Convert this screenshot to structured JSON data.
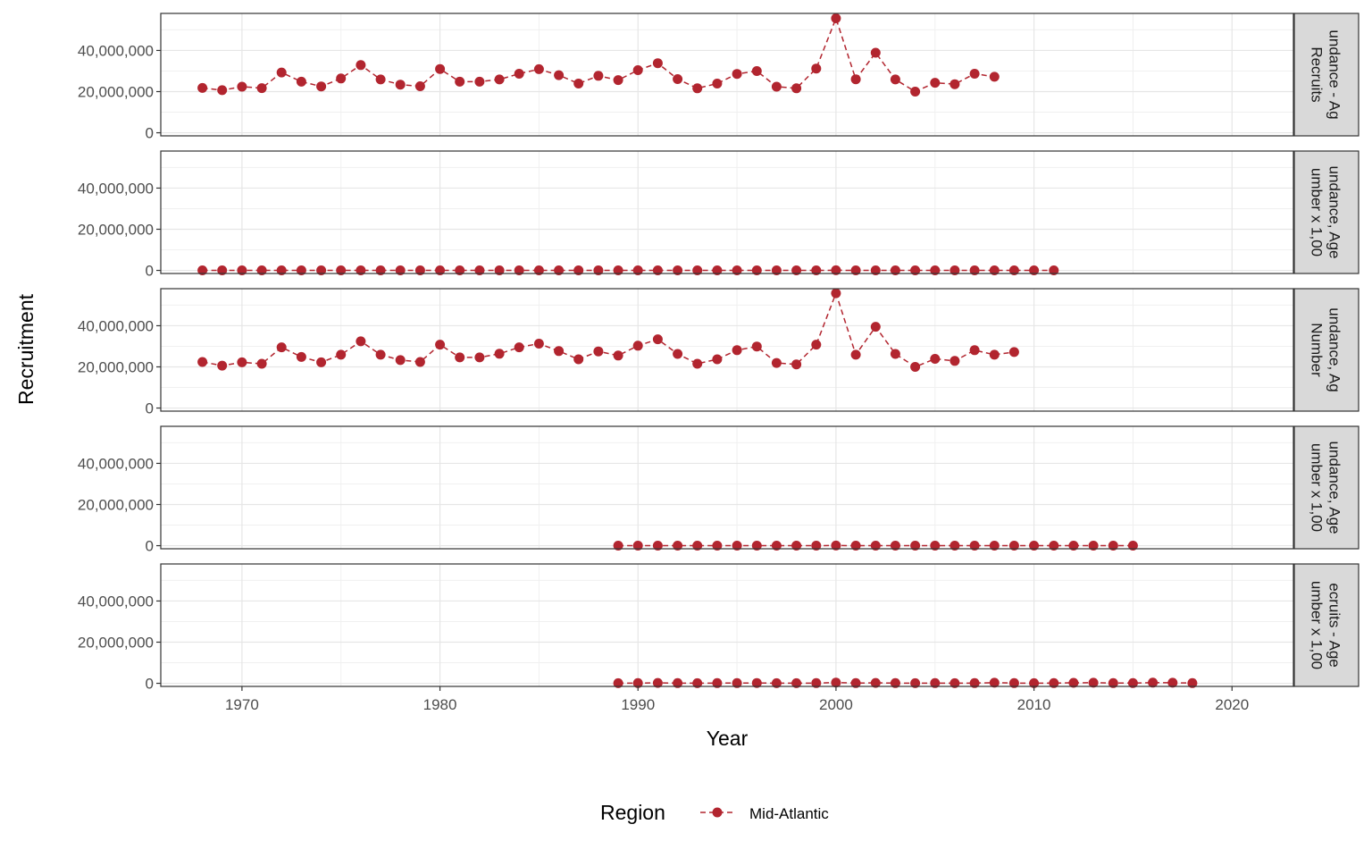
{
  "chart_data": {
    "type": "line",
    "xlabel": "Year",
    "ylabel": "Recruitment",
    "xlim": [
      1965.9,
      2023.1
    ],
    "ylim": [
      -1500000,
      58000000
    ],
    "x_ticks": [
      1970,
      1980,
      1990,
      2000,
      2010,
      2020
    ],
    "y_ticks": [
      0,
      20000000,
      40000000
    ],
    "y_tick_labels": [
      "0",
      "20,000,000",
      "40,000,000"
    ],
    "grid": true,
    "legend": {
      "title": "Region",
      "position": "bottom",
      "entries": [
        "Mid-Atlantic"
      ]
    },
    "series_color": "#B2252F",
    "panels": [
      {
        "strip": [
          "undance - Ag",
          "Recruits"
        ],
        "series": [
          {
            "name": "Mid-Atlantic",
            "x": [
              1968,
              1969,
              1970,
              1971,
              1972,
              1973,
              1974,
              1975,
              1976,
              1977,
              1978,
              1979,
              1980,
              1981,
              1982,
              1983,
              1984,
              1985,
              1986,
              1987,
              1988,
              1989,
              1990,
              1991,
              1992,
              1993,
              1994,
              1995,
              1996,
              1997,
              1998,
              1999,
              2000,
              2001,
              2002,
              2003,
              2004,
              2005,
              2006,
              2007,
              2008
            ],
            "y": [
              21800000,
              20700000,
              22400000,
              21700000,
              29300000,
              24800000,
              22500000,
              26400000,
              32900000,
              25900000,
              23400000,
              22600000,
              31000000,
              24800000,
              24800000,
              25900000,
              28700000,
              30900000,
              28000000,
              23900000,
              27700000,
              25600000,
              30400000,
              33800000,
              26100000,
              21600000,
              23900000,
              28600000,
              30000000,
              22400000,
              21600000,
              31200000,
              55600000,
              26000000,
              38900000,
              25900000,
              20000000,
              24300000,
              23600000,
              28700000,
              27200000
            ]
          }
        ]
      },
      {
        "strip": [
          "undance, Age",
          "umber x 1,00"
        ],
        "series": [
          {
            "name": "Mid-Atlantic",
            "x": [
              1968,
              1969,
              1970,
              1971,
              1972,
              1973,
              1974,
              1975,
              1976,
              1977,
              1978,
              1979,
              1980,
              1981,
              1982,
              1983,
              1984,
              1985,
              1986,
              1987,
              1988,
              1989,
              1990,
              1991,
              1992,
              1993,
              1994,
              1995,
              1996,
              1997,
              1998,
              1999,
              2000,
              2001,
              2002,
              2003,
              2004,
              2005,
              2006,
              2007,
              2008,
              2009,
              2010,
              2011
            ],
            "y": [
              22000,
              21000,
              22000,
              22000,
              29000,
              25000,
              22000,
              26000,
              33000,
              26000,
              23000,
              23000,
              31000,
              25000,
              25000,
              26000,
              29000,
              31000,
              28000,
              24000,
              28000,
              26000,
              30000,
              34000,
              26000,
              22000,
              24000,
              29000,
              30000,
              22000,
              22000,
              31000,
              56000,
              26000,
              39000,
              26000,
              20000,
              24000,
              24000,
              29000,
              27000,
              27000,
              24000,
              22000
            ]
          }
        ]
      },
      {
        "strip": [
          "undance, Ag",
          "Number"
        ],
        "series": [
          {
            "name": "Mid-Atlantic",
            "x": [
              1968,
              1969,
              1970,
              1971,
              1972,
              1973,
              1974,
              1975,
              1976,
              1977,
              1978,
              1979,
              1980,
              1981,
              1982,
              1983,
              1984,
              1985,
              1986,
              1987,
              1988,
              1989,
              1990,
              1991,
              1992,
              1993,
              1994,
              1995,
              1996,
              1997,
              1998,
              1999,
              2000,
              2001,
              2002,
              2003,
              2004,
              2005,
              2006,
              2007,
              2008,
              2009
            ],
            "y": [
              22400000,
              20600000,
              22200000,
              21500000,
              29500000,
              24800000,
              22200000,
              25900000,
              32400000,
              25900000,
              23300000,
              22400000,
              30800000,
              24600000,
              24600000,
              26400000,
              29500000,
              31300000,
              27700000,
              23700000,
              27500000,
              25500000,
              30300000,
              33400000,
              26300000,
              21500000,
              23700000,
              28100000,
              29900000,
              21900000,
              21200000,
              30800000,
              55800000,
              25900000,
              39500000,
              26300000,
              20000000,
              23900000,
              22900000,
              28100000,
              25900000,
              27200000
            ]
          }
        ]
      },
      {
        "strip": [
          "undance, Age",
          "umber x 1,00"
        ],
        "series": [
          {
            "name": "Mid-Atlantic",
            "x": [
              1989,
              1990,
              1991,
              1992,
              1993,
              1994,
              1995,
              1996,
              1997,
              1998,
              1999,
              2000,
              2001,
              2002,
              2003,
              2004,
              2005,
              2006,
              2007,
              2008,
              2009,
              2010,
              2011,
              2012,
              2013,
              2014,
              2015
            ],
            "y": [
              25000,
              30000,
              34000,
              26000,
              22000,
              24000,
              28000,
              30000,
              22000,
              21000,
              31000,
              56000,
              26000,
              39000,
              26000,
              20000,
              24000,
              23000,
              28000,
              26000,
              27000,
              25000,
              23000,
              21000,
              20000,
              19000,
              18000
            ]
          }
        ]
      },
      {
        "strip": [
          "ecruits - Age",
          "umber x 1,00"
        ],
        "series": [
          {
            "name": "Mid-Atlantic",
            "x": [
              1989,
              1990,
              1991,
              1992,
              1993,
              1994,
              1995,
              1996,
              1997,
              1998,
              1999,
              2000,
              2001,
              2002,
              2003,
              2004,
              2005,
              2006,
              2007,
              2008,
              2009,
              2010,
              2011,
              2012,
              2013,
              2014,
              2015,
              2016,
              2017,
              2018
            ],
            "y": [
              60000,
              120000,
              200000,
              90000,
              60000,
              90000,
              110000,
              130000,
              70000,
              60000,
              120000,
              380000,
              90000,
              200000,
              100000,
              60000,
              90000,
              80000,
              110000,
              300000,
              110000,
              80000,
              100000,
              250000,
              260000,
              100000,
              90000,
              310000,
              280000,
              90000
            ]
          }
        ]
      }
    ]
  }
}
